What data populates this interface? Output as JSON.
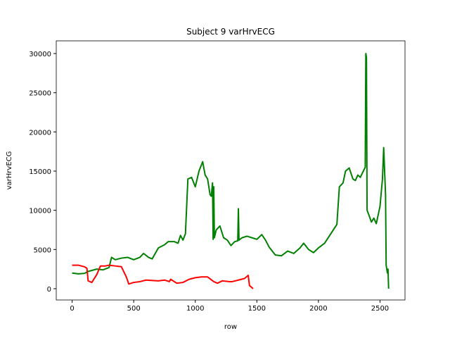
{
  "chart_data": {
    "type": "line",
    "title": "Subject 9 varHrvECG",
    "x_label": "row",
    "y_label": "varHrvECG",
    "xlim": [
      -129,
      2703
    ],
    "ylim": [
      -1440,
      31620
    ],
    "xticks": [
      0,
      500,
      1000,
      1500,
      2000,
      2500
    ],
    "yticks": [
      0,
      5000,
      10000,
      15000,
      20000,
      25000,
      30000
    ],
    "series": [
      {
        "color": "#008000",
        "x": [
          0,
          50,
          100,
          130,
          200,
          250,
          300,
          320,
          350,
          400,
          450,
          500,
          550,
          580,
          620,
          650,
          700,
          750,
          780,
          830,
          860,
          880,
          900,
          920,
          940,
          970,
          1000,
          1030,
          1060,
          1080,
          1100,
          1120,
          1130,
          1140,
          1145,
          1150,
          1155,
          1170,
          1200,
          1230,
          1260,
          1290,
          1320,
          1345,
          1350,
          1355,
          1380,
          1420,
          1460,
          1500,
          1540,
          1570,
          1600,
          1650,
          1700,
          1750,
          1800,
          1850,
          1880,
          1920,
          1960,
          2000,
          2050,
          2100,
          2150,
          2170,
          2200,
          2220,
          2250,
          2280,
          2300,
          2320,
          2340,
          2380,
          2385,
          2390,
          2395,
          2410,
          2430,
          2450,
          2470,
          2500,
          2520,
          2530,
          2545,
          2550,
          2560,
          2565,
          2570
        ],
        "values": [
          2000,
          1900,
          1950,
          2200,
          2500,
          2400,
          2700,
          4000,
          3700,
          3900,
          4000,
          3700,
          4000,
          4500,
          4000,
          3800,
          5200,
          5600,
          6000,
          6000,
          5800,
          6800,
          6200,
          7000,
          14000,
          14200,
          13000,
          15000,
          16200,
          14500,
          14000,
          12000,
          11800,
          13500,
          6300,
          13000,
          6500,
          7500,
          8000,
          6500,
          6200,
          5500,
          6000,
          6100,
          10200,
          6200,
          6500,
          6700,
          6500,
          6300,
          6900,
          6200,
          5300,
          4300,
          4200,
          4800,
          4500,
          5200,
          5800,
          5000,
          4600,
          5200,
          5800,
          7000,
          8200,
          13000,
          13500,
          15000,
          15400,
          14000,
          13800,
          14500,
          14200,
          15500,
          30000,
          29500,
          10000,
          9400,
          8500,
          9000,
          8300,
          10500,
          14000,
          18000,
          12000,
          3000,
          2000,
          2500,
          0
        ]
      },
      {
        "color": "#ff0000",
        "x": [
          0,
          50,
          100,
          120,
          130,
          160,
          200,
          230,
          270,
          300,
          350,
          400,
          440,
          460,
          500,
          550,
          600,
          700,
          750,
          790,
          800,
          850,
          900,
          950,
          1000,
          1050,
          1100,
          1150,
          1180,
          1220,
          1280,
          1300,
          1350,
          1400,
          1430,
          1440,
          1470
        ],
        "values": [
          3000,
          3000,
          2800,
          2600,
          1000,
          800,
          1800,
          2900,
          2900,
          3000,
          2900,
          2800,
          1500,
          600,
          800,
          900,
          1100,
          1000,
          1100,
          900,
          1200,
          700,
          800,
          1200,
          1400,
          1500,
          1500,
          900,
          700,
          1000,
          900,
          900,
          1100,
          1300,
          1700,
          400,
          0
        ]
      }
    ]
  }
}
